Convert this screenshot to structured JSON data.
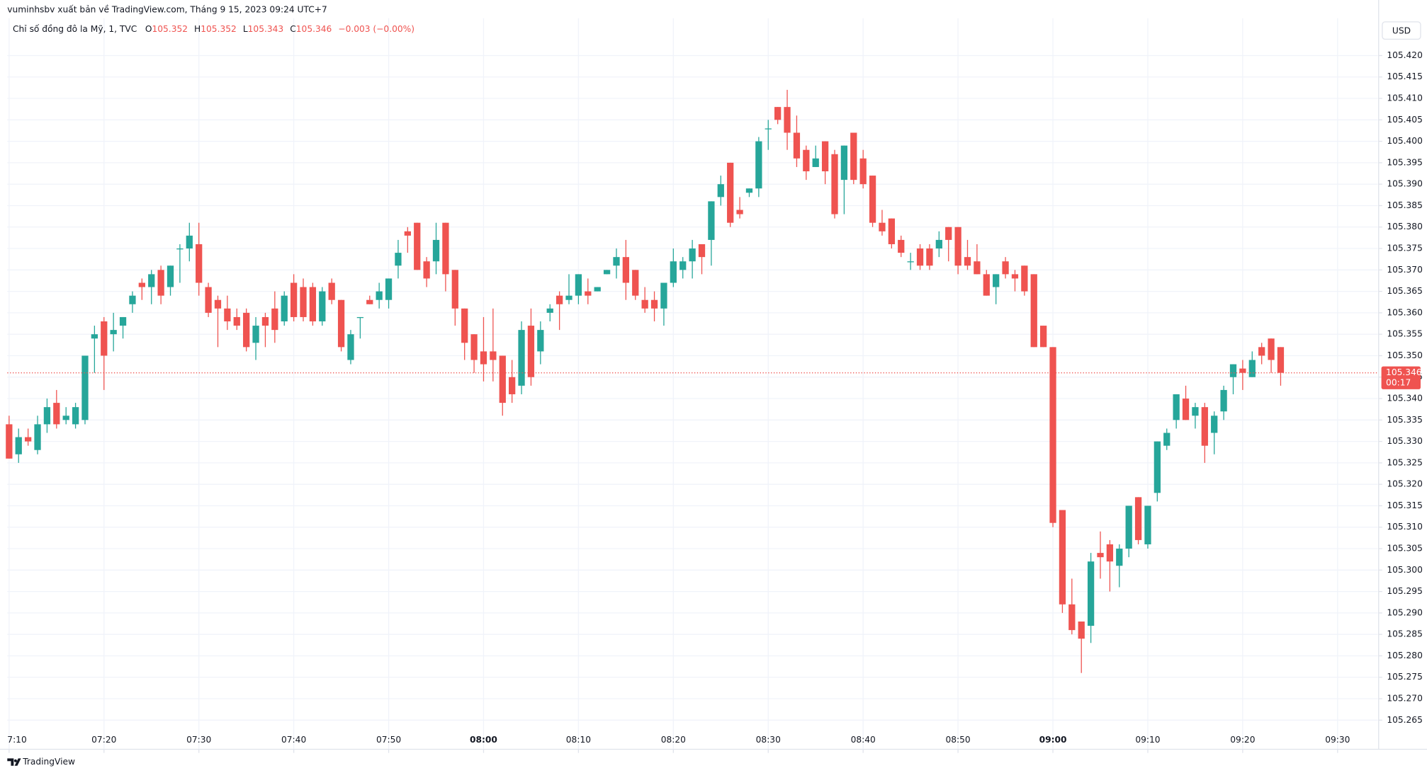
{
  "header": {
    "published": "vuminhsbv xuất bản về TradingView.com, Tháng 9 15, 2023 09:24 UTC+7",
    "symbol": "Chỉ số đồng đô la Mỹ, 1, TVC",
    "ohlc": [
      {
        "key": "O",
        "value": 105.352
      },
      {
        "key": "H",
        "value": 105.352
      },
      {
        "key": "L",
        "value": 105.343
      },
      {
        "key": "C",
        "value": 105.346
      }
    ],
    "change": "−0.003 (−0.00%)",
    "currency": "USD",
    "countdown": "00:17",
    "brand": "TradingView"
  },
  "chart_data": {
    "type": "candlestick",
    "up_color": "#26a69a",
    "down_color": "#ef5350",
    "grid": true,
    "xlim": [
      -0.19,
      144.23
    ],
    "xticks": [
      {
        "value": 0,
        "label": "7:10"
      },
      {
        "value": 10,
        "label": "07:20"
      },
      {
        "value": 20,
        "label": "07:30"
      },
      {
        "value": 30,
        "label": "07:40"
      },
      {
        "value": 40,
        "label": "07:50"
      },
      {
        "value": 50,
        "label": "08:00"
      },
      {
        "value": 60,
        "label": "08:10"
      },
      {
        "value": 70,
        "label": "08:20"
      },
      {
        "value": 80,
        "label": "08:30"
      },
      {
        "value": 90,
        "label": "08:40"
      },
      {
        "value": 100,
        "label": "08:50"
      },
      {
        "value": 110,
        "label": "09:00"
      },
      {
        "value": 120,
        "label": "09:10"
      },
      {
        "value": 130,
        "label": "09:20"
      },
      {
        "value": 140,
        "label": "09:30"
      }
    ],
    "ylim": [
      105.2582,
      105.4287
    ],
    "yticks": [
      105.265,
      {
        "value": 105.27,
        "label": "105.270"
      },
      105.275,
      {
        "value": 105.28,
        "label": "105.280"
      },
      105.285,
      {
        "value": 105.29,
        "label": "105.290"
      },
      105.295,
      {
        "value": 105.3,
        "label": "105.300"
      },
      105.305,
      {
        "value": 105.31,
        "label": "105.310"
      },
      105.315,
      {
        "value": 105.32,
        "label": "105.320"
      },
      105.325,
      {
        "value": 105.33,
        "label": "105.330"
      },
      105.335,
      {
        "value": 105.34,
        "label": "105.340"
      },
      105.345,
      {
        "value": 105.35,
        "label": "105.350"
      },
      105.355,
      {
        "value": 105.36,
        "label": "105.360"
      },
      105.365,
      {
        "value": 105.37,
        "label": "105.370"
      },
      105.375,
      {
        "value": 105.38,
        "label": "105.380"
      },
      105.385,
      {
        "value": 105.39,
        "label": "105.390"
      },
      105.395,
      {
        "value": 105.4,
        "label": "105.400"
      },
      105.405,
      {
        "value": 105.41,
        "label": "105.410"
      },
      105.415,
      {
        "value": 105.42,
        "label": "105.420"
      }
    ],
    "open": [
      105.334,
      105.327,
      105.331,
      105.328,
      105.334,
      105.339,
      105.335,
      105.334,
      105.335,
      105.354,
      105.358,
      105.355,
      105.357,
      105.362,
      105.367,
      105.366,
      105.37,
      105.366,
      105.375,
      105.375,
      105.376,
      105.366,
      105.363,
      105.361,
      105.359,
      105.36,
      105.353,
      105.359,
      105.361,
      105.358,
      105.367,
      105.366,
      105.366,
      105.358,
      105.367,
      105.363,
      105.349,
      105.359,
      105.363,
      105.363,
      105.363,
      105.371,
      105.379,
      105.381,
      105.372,
      105.372,
      105.381,
      105.37,
      105.361,
      105.355,
      105.351,
      105.351,
      105.35,
      105.345,
      105.343,
      105.357,
      105.351,
      105.36,
      105.364,
      105.363,
      105.364,
      105.365,
      105.365,
      105.369,
      105.371,
      105.373,
      105.37,
      105.363,
      105.363,
      105.361,
      105.367,
      105.37,
      105.372,
      105.376,
      105.377,
      105.387,
      105.395,
      105.384,
      105.388,
      105.389,
      105.403,
      105.408,
      105.408,
      105.402,
      105.398,
      105.394,
      105.4,
      105.397,
      105.391,
      105.402,
      105.396,
      105.392,
      105.381,
      105.382,
      105.377,
      105.372,
      105.375,
      105.375,
      105.375,
      105.38,
      105.38,
      105.373,
      105.372,
      105.369,
      105.366,
      105.372,
      105.369,
      105.371,
      105.369,
      105.357,
      105.352,
      105.314,
      105.292,
      105.288,
      105.287,
      105.304,
      105.306,
      105.301,
      105.305,
      105.317,
      105.306,
      105.318,
      105.329,
      105.335,
      105.34,
      105.336,
      105.338,
      105.332,
      105.337,
      105.345,
      105.347,
      105.345,
      105.352,
      105.354,
      105.352
    ],
    "high": [
      105.336,
      105.333,
      105.333,
      105.336,
      105.34,
      105.342,
      105.338,
      105.339,
      105.35,
      105.357,
      105.359,
      105.36,
      105.359,
      105.365,
      105.368,
      105.37,
      105.371,
      105.371,
      105.376,
      105.381,
      105.381,
      105.367,
      105.364,
      105.364,
      105.361,
      105.361,
      105.359,
      105.36,
      105.365,
      105.365,
      105.369,
      105.368,
      105.367,
      105.366,
      105.368,
      105.363,
      105.356,
      105.359,
      105.364,
      105.367,
      105.368,
      105.377,
      105.38,
      105.381,
      105.373,
      105.381,
      105.381,
      105.37,
      105.361,
      105.355,
      105.359,
      105.361,
      105.35,
      105.349,
      105.358,
      105.361,
      105.358,
      105.362,
      105.365,
      105.369,
      105.369,
      105.368,
      105.366,
      105.37,
      105.375,
      105.377,
      105.37,
      105.366,
      105.365,
      105.367,
      105.375,
      105.373,
      105.377,
      105.376,
      105.386,
      105.392,
      105.395,
      105.387,
      105.389,
      105.401,
      105.405,
      105.408,
      105.412,
      105.406,
      105.399,
      105.399,
      105.4,
      105.398,
      105.399,
      105.402,
      105.398,
      105.392,
      105.384,
      105.382,
      105.378,
      105.374,
      105.376,
      105.376,
      105.379,
      105.38,
      105.38,
      105.377,
      105.376,
      105.37,
      105.369,
      105.373,
      105.37,
      105.371,
      105.369,
      105.357,
      105.352,
      105.314,
      105.298,
      105.288,
      105.304,
      105.309,
      105.307,
      105.306,
      105.315,
      105.317,
      105.315,
      105.33,
      105.333,
      105.341,
      105.343,
      105.339,
      105.339,
      105.337,
      105.343,
      105.348,
      105.349,
      105.351,
      105.353,
      105.354,
      105.352
    ],
    "low": [
      105.326,
      105.325,
      105.329,
      105.327,
      105.332,
      105.333,
      105.334,
      105.333,
      105.334,
      105.346,
      105.342,
      105.351,
      105.354,
      105.36,
      105.363,
      105.362,
      105.362,
      105.364,
      105.367,
      105.372,
      105.364,
      105.359,
      105.352,
      105.356,
      105.356,
      105.351,
      105.349,
      105.352,
      105.353,
      105.357,
      105.358,
      105.358,
      105.357,
      105.357,
      105.362,
      105.351,
      105.348,
      105.354,
      105.362,
      105.361,
      105.361,
      105.368,
      105.374,
      105.37,
      105.366,
      105.369,
      105.365,
      105.357,
      105.349,
      105.346,
      105.344,
      105.344,
      105.336,
      105.339,
      105.341,
      105.343,
      105.348,
      105.358,
      105.356,
      105.362,
      105.362,
      105.362,
      105.365,
      105.369,
      105.368,
      105.363,
      105.363,
      105.36,
      105.358,
      105.357,
      105.366,
      105.368,
      105.368,
      105.369,
      105.371,
      105.385,
      105.38,
      105.382,
      105.387,
      105.387,
      105.398,
      105.404,
      105.398,
      105.394,
      105.391,
      105.394,
      105.39,
      105.382,
      105.383,
      105.39,
      105.389,
      105.38,
      105.378,
      105.375,
      105.373,
      105.37,
      105.37,
      105.37,
      105.373,
      105.372,
      105.369,
      105.37,
      105.369,
      105.364,
      105.362,
      105.368,
      105.365,
      105.364,
      105.352,
      105.352,
      105.31,
      105.29,
      105.285,
      105.276,
      105.283,
      105.298,
      105.295,
      105.296,
      105.303,
      105.306,
      105.305,
      105.316,
      105.328,
      105.333,
      105.335,
      105.333,
      105.325,
      105.327,
      105.335,
      105.341,
      105.342,
      105.345,
      105.348,
      105.346,
      105.343
    ],
    "close": [
      105.326,
      105.331,
      105.33,
      105.334,
      105.338,
      105.334,
      105.336,
      105.338,
      105.35,
      105.355,
      105.35,
      105.356,
      105.359,
      105.364,
      105.366,
      105.369,
      105.364,
      105.371,
      105.375,
      105.378,
      105.367,
      105.36,
      105.361,
      105.358,
      105.357,
      105.352,
      105.357,
      105.357,
      105.356,
      105.364,
      105.359,
      105.359,
      105.358,
      105.365,
      105.363,
      105.352,
      105.355,
      105.359,
      105.362,
      105.365,
      105.368,
      105.374,
      105.378,
      105.37,
      105.368,
      105.377,
      105.369,
      105.361,
      105.353,
      105.349,
      105.348,
      105.349,
      105.339,
      105.341,
      105.356,
      105.345,
      105.356,
      105.361,
      105.362,
      105.364,
      105.369,
      105.364,
      105.366,
      105.37,
      105.373,
      105.367,
      105.364,
      105.361,
      105.361,
      105.367,
      105.372,
      105.372,
      105.375,
      105.373,
      105.386,
      105.39,
      105.381,
      105.383,
      105.389,
      105.4,
      105.403,
      105.405,
      105.402,
      105.396,
      105.393,
      105.396,
      105.393,
      105.383,
      105.399,
      105.391,
      105.39,
      105.381,
      105.379,
      105.376,
      105.374,
      105.372,
      105.371,
      105.371,
      105.377,
      105.377,
      105.371,
      105.371,
      105.369,
      105.364,
      105.369,
      105.369,
      105.368,
      105.365,
      105.352,
      105.352,
      105.311,
      105.292,
      105.286,
      105.284,
      105.302,
      105.303,
      105.302,
      105.305,
      105.315,
      105.307,
      105.315,
      105.33,
      105.332,
      105.341,
      105.335,
      105.338,
      105.329,
      105.336,
      105.342,
      105.348,
      105.346,
      105.349,
      105.35,
      105.349,
      105.346
    ]
  }
}
